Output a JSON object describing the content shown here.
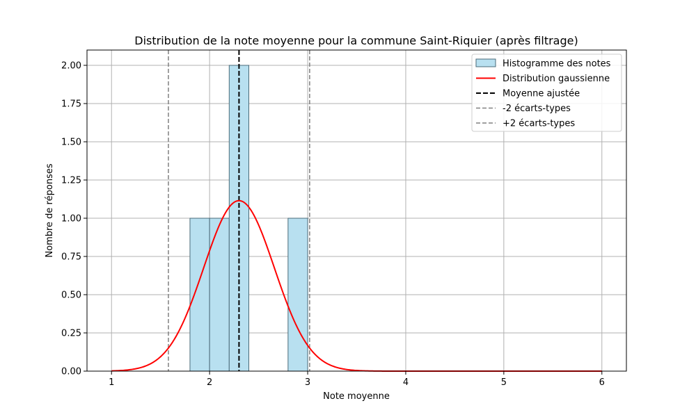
{
  "chart_data": {
    "type": "histogram",
    "title": "Distribution de la note moyenne pour la commune Saint-Riquier (après filtrage)",
    "xlabel": "Note moyenne",
    "ylabel": "Nombre de réponses",
    "xlim": [
      0.75,
      6.25
    ],
    "ylim": [
      0,
      2.1
    ],
    "xticks": [
      1,
      2,
      3,
      4,
      5,
      6
    ],
    "xtick_labels": [
      "1",
      "2",
      "3",
      "4",
      "5",
      "6"
    ],
    "yticks": [
      0,
      0.25,
      0.5,
      0.75,
      1.0,
      1.25,
      1.5,
      1.75,
      2.0
    ],
    "ytick_labels": [
      "0.00",
      "0.25",
      "0.50",
      "0.75",
      "1.00",
      "1.25",
      "1.50",
      "1.75",
      "2.00"
    ],
    "grid": true,
    "legend_position": "top-right",
    "histogram": {
      "name": "Histogramme des notes",
      "bins": [
        {
          "x0": 1.8,
          "x1": 2.0,
          "count": 1
        },
        {
          "x0": 2.0,
          "x1": 2.2,
          "count": 1
        },
        {
          "x0": 2.2,
          "x1": 2.4,
          "count": 2
        },
        {
          "x0": 2.8,
          "x1": 3.0,
          "count": 1
        }
      ],
      "fill_color": "#b8e0f0",
      "edge_color": "#4a6a78"
    },
    "gaussian": {
      "name": "Distribution gaussienne",
      "mean": 2.3,
      "std": 0.36,
      "peak": 1.115,
      "x_range": [
        1,
        6
      ],
      "color": "#ff0000"
    },
    "vlines": [
      {
        "name": "Moyenne ajustée",
        "x": 2.3,
        "color": "#000000",
        "style": "dashed"
      },
      {
        "name": "-2 écarts-types",
        "x": 1.58,
        "color": "#808080",
        "style": "dashed"
      },
      {
        "name": "+2 écarts-types",
        "x": 3.02,
        "color": "#808080",
        "style": "dashed"
      }
    ]
  }
}
